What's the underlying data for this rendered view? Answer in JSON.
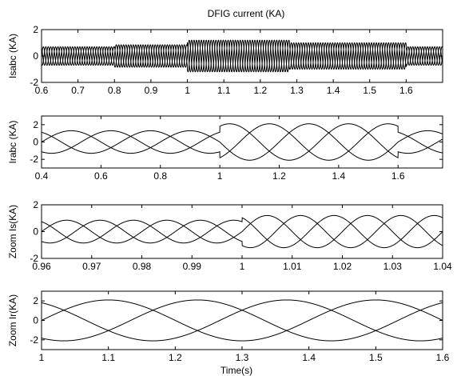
{
  "figure": {
    "title": "DFIG current (KA)",
    "xlabel": "Time(s)"
  },
  "chart_data": [
    {
      "type": "line",
      "ylabel": "Isabc (KA)",
      "xlim": [
        0.6,
        1.7
      ],
      "ylim": [
        -2,
        2
      ],
      "xticks": [
        0.6,
        0.7,
        0.8,
        0.9,
        1.0,
        1.1,
        1.2,
        1.3,
        1.4,
        1.5,
        1.6
      ],
      "xtick_labels": [
        "0.6",
        "0.7",
        "0.8",
        "0.9",
        "1",
        "1.1",
        "1.2",
        "1.3",
        "1.4",
        "1.5",
        "1.6"
      ],
      "yticks": [
        -2,
        0,
        2
      ],
      "ytick_labels": [
        "-2",
        "0",
        "2"
      ],
      "frequency_hz": 50,
      "phases": 3,
      "segments": [
        {
          "start": 0.6,
          "end": 0.8,
          "amplitude": 0.7
        },
        {
          "start": 0.8,
          "end": 1.0,
          "amplitude": 0.85
        },
        {
          "start": 1.0,
          "end": 1.28,
          "amplitude": 1.2
        },
        {
          "start": 1.28,
          "end": 1.6,
          "amplitude": 1.0
        },
        {
          "start": 1.6,
          "end": 1.7,
          "amplitude": 0.7
        }
      ],
      "series": [
        {
          "name": "",
          "phase_deg": 0
        },
        {
          "name": "",
          "phase_deg": -120
        },
        {
          "name": "",
          "phase_deg": 120
        }
      ]
    },
    {
      "type": "line",
      "ylabel": "Irabc (KA)",
      "xlim": [
        0.4,
        1.75
      ],
      "ylim": [
        -3,
        3
      ],
      "xticks": [
        0.4,
        0.6,
        0.8,
        1.0,
        1.2,
        1.4,
        1.6
      ],
      "xtick_labels": [
        "0.4",
        "0.6",
        "0.8",
        "1",
        "1.2",
        "1.4",
        "1.6"
      ],
      "yticks": [
        -2,
        0,
        2
      ],
      "ytick_labels": [
        "-2",
        "0",
        "2"
      ],
      "phases": 3,
      "segments": [
        {
          "start": 0.4,
          "end": 0.8,
          "amplitude": 1.3,
          "frequency_hz": 2.5
        },
        {
          "start": 0.8,
          "end": 1.0,
          "amplitude": 1.3,
          "frequency_hz": 2.5
        },
        {
          "start": 1.0,
          "end": 1.6,
          "amplitude": 2.1,
          "frequency_hz": 2.5
        },
        {
          "start": 1.6,
          "end": 1.75,
          "amplitude": 1.3,
          "frequency_hz": 2.5
        }
      ],
      "series": [
        {
          "name": "",
          "phase_deg": 0
        },
        {
          "name": "",
          "phase_deg": -120
        },
        {
          "name": "",
          "phase_deg": 120
        }
      ]
    },
    {
      "type": "line",
      "ylabel": "Zoom Is(KA)",
      "xlim": [
        0.96,
        1.04
      ],
      "ylim": [
        -2,
        2
      ],
      "xticks": [
        0.96,
        0.97,
        0.98,
        0.99,
        1.0,
        1.01,
        1.02,
        1.03,
        1.04
      ],
      "xtick_labels": [
        "0.96",
        "0.97",
        "0.98",
        "0.99",
        "1",
        "1.01",
        "1.02",
        "1.03",
        "1.04"
      ],
      "yticks": [
        -2,
        0,
        2
      ],
      "ytick_labels": [
        "-2",
        "0",
        "2"
      ],
      "frequency_hz": 50,
      "phases": 3,
      "segments": [
        {
          "start": 0.96,
          "end": 1.0,
          "amplitude": 0.85
        },
        {
          "start": 1.0,
          "end": 1.04,
          "amplitude": 1.2
        }
      ],
      "series": [
        {
          "name": "",
          "phase_deg": 0
        },
        {
          "name": "",
          "phase_deg": -120
        },
        {
          "name": "",
          "phase_deg": 120
        }
      ]
    },
    {
      "type": "line",
      "ylabel": "Zoom Ir(KA)",
      "xlim": [
        1.0,
        1.6
      ],
      "ylim": [
        -3,
        3
      ],
      "xticks": [
        1.0,
        1.1,
        1.2,
        1.3,
        1.4,
        1.5,
        1.6
      ],
      "xtick_labels": [
        "1",
        "1.1",
        "1.2",
        "1.3",
        "1.4",
        "1.5",
        "1.6"
      ],
      "yticks": [
        -2,
        0,
        2
      ],
      "ytick_labels": [
        "-2",
        "0",
        "2"
      ],
      "frequency_hz": 2.5,
      "phases": 3,
      "segments": [
        {
          "start": 1.0,
          "end": 1.6,
          "amplitude": 2.1
        }
      ],
      "series": [
        {
          "name": "",
          "phase_deg": 0
        },
        {
          "name": "",
          "phase_deg": -120
        },
        {
          "name": "",
          "phase_deg": 120
        }
      ]
    }
  ]
}
